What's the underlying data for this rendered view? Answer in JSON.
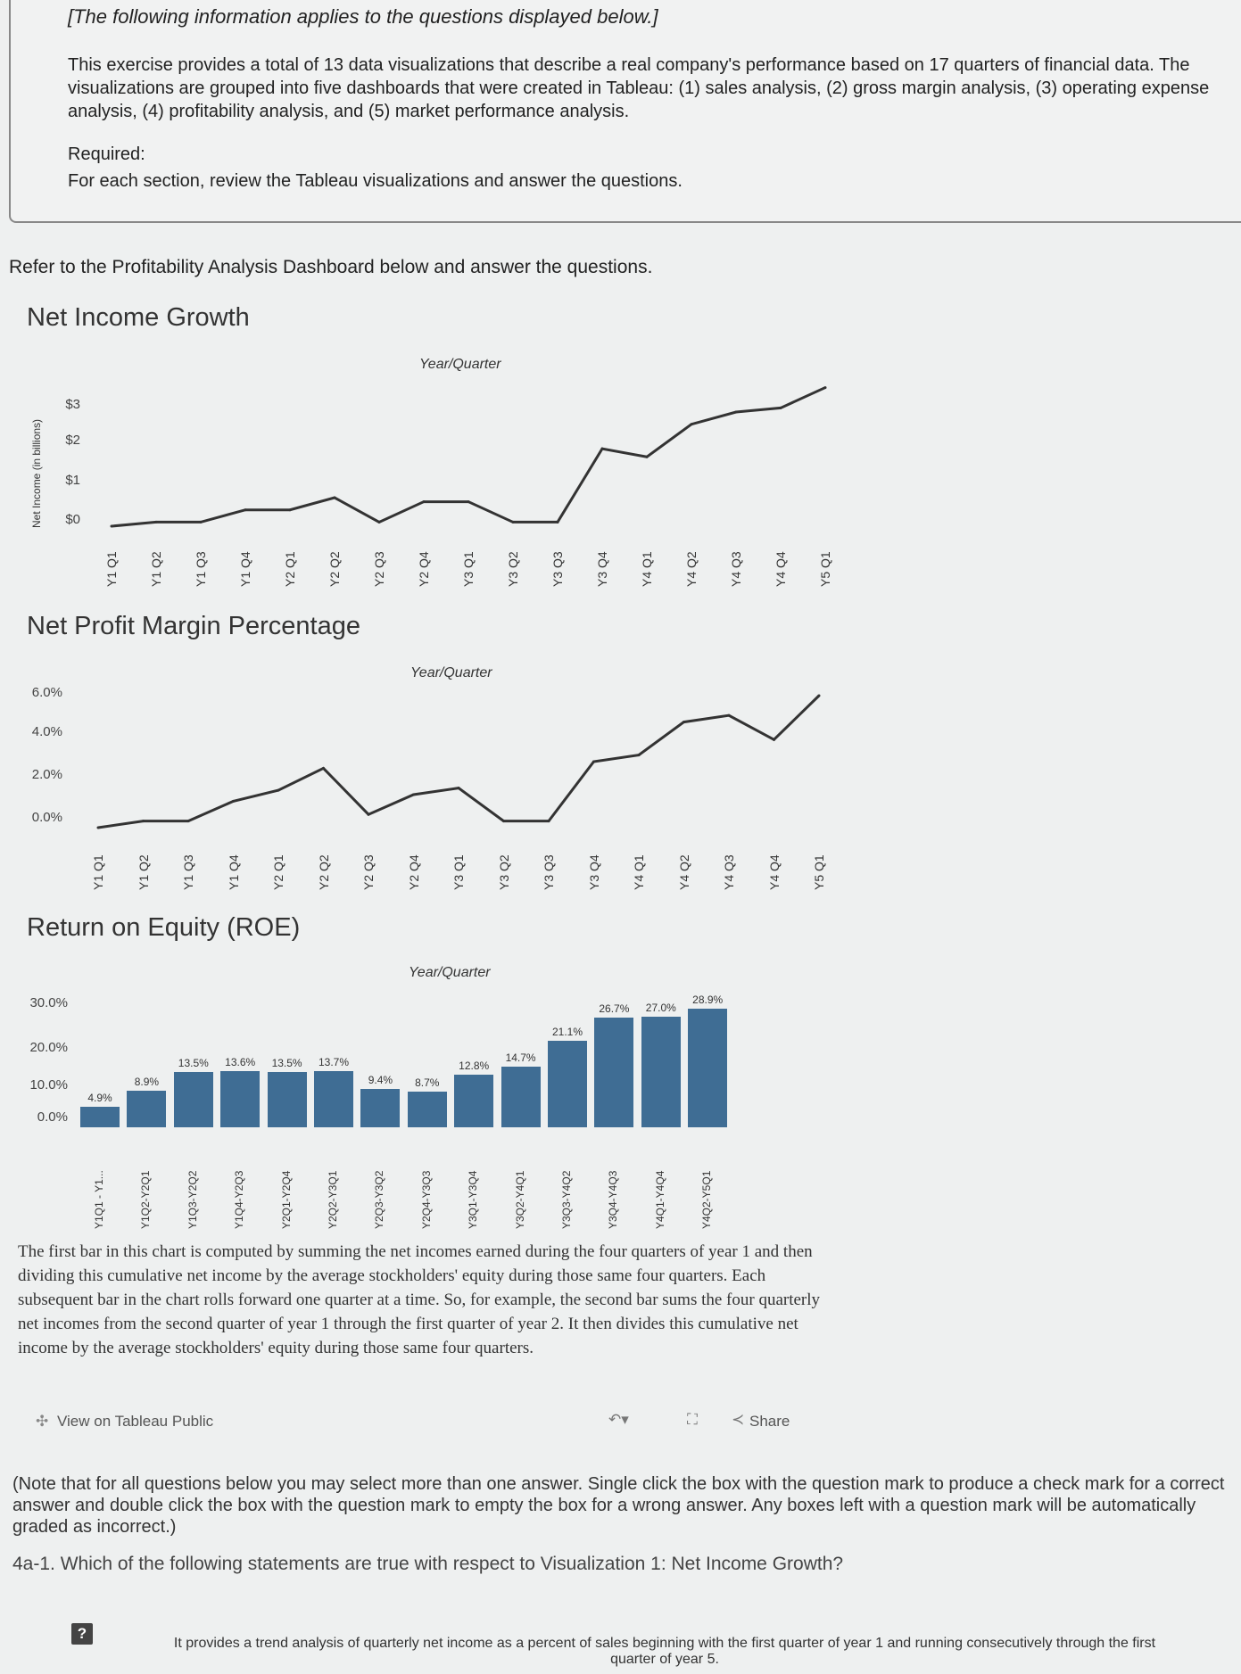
{
  "info": {
    "heading": "[The following information applies to the questions displayed below.]",
    "body": "This exercise provides a total of 13 data visualizations that describe a real company's performance based on 17 quarters of financial data. The visualizations are grouped into five dashboards that were created in Tableau: (1) sales analysis, (2) gross margin analysis, (3) operating expense analysis, (4) profitability analysis, and (5) market performance analysis.",
    "required_label": "Required:",
    "required_text": "For each section, review the Tableau visualizations and answer the questions."
  },
  "refer_text": "Refer to the Profitability Analysis Dashboard below and answer the questions.",
  "quarters": [
    "Y1 Q1",
    "Y1 Q2",
    "Y1 Q3",
    "Y1 Q4",
    "Y2 Q1",
    "Y2 Q2",
    "Y2 Q3",
    "Y2 Q4",
    "Y3 Q1",
    "Y3 Q2",
    "Y3 Q3",
    "Y3 Q4",
    "Y4 Q1",
    "Y4 Q2",
    "Y4 Q3",
    "Y4 Q4",
    "Y5 Q1"
  ],
  "chart_data": [
    {
      "type": "line",
      "title": "Net Income Growth",
      "xlabel": "Year/Quarter",
      "ylabel": "Net Income (in billions)",
      "y_ticks": [
        "$3",
        "$2",
        "$1",
        "$0"
      ],
      "ylim": [
        0,
        3.5
      ],
      "x": [
        "Y1 Q1",
        "Y1 Q2",
        "Y1 Q3",
        "Y1 Q4",
        "Y2 Q1",
        "Y2 Q2",
        "Y2 Q3",
        "Y2 Q4",
        "Y3 Q1",
        "Y3 Q2",
        "Y3 Q3",
        "Y3 Q4",
        "Y4 Q1",
        "Y4 Q2",
        "Y4 Q3",
        "Y4 Q4",
        "Y5 Q1"
      ],
      "values": [
        0.0,
        0.1,
        0.1,
        0.4,
        0.4,
        0.7,
        0.1,
        0.6,
        0.6,
        0.1,
        0.1,
        1.9,
        1.7,
        2.5,
        2.8,
        2.9,
        3.4
      ],
      "grid": false
    },
    {
      "type": "line",
      "title": "Net Profit Margin Percentage",
      "xlabel": "Year/Quarter",
      "ylabel": "",
      "y_ticks": [
        "6.0%",
        "4.0%",
        "2.0%",
        "0.0%"
      ],
      "ylim": [
        0,
        6
      ],
      "x": [
        "Y1 Q1",
        "Y1 Q2",
        "Y1 Q3",
        "Y1 Q4",
        "Y2 Q1",
        "Y2 Q2",
        "Y2 Q3",
        "Y2 Q4",
        "Y3 Q1",
        "Y3 Q2",
        "Y3 Q3",
        "Y3 Q4",
        "Y4 Q1",
        "Y4 Q2",
        "Y4 Q3",
        "Y4 Q4",
        "Y5 Q1"
      ],
      "values": [
        0.0,
        0.3,
        0.3,
        1.2,
        1.7,
        2.7,
        0.6,
        1.5,
        1.8,
        0.3,
        0.3,
        3.0,
        3.3,
        4.8,
        5.1,
        4.0,
        6.0
      ],
      "grid": false
    },
    {
      "type": "bar",
      "title": "Return on Equity (ROE)",
      "xlabel": "Year/Quarter",
      "ylabel": "",
      "y_ticks": [
        "30.0%",
        "20.0%",
        "10.0%",
        "0.0%"
      ],
      "ylim": [
        0,
        30
      ],
      "categories": [
        "Y1Q1 - Y1...",
        "Y1Q2-Y2Q1",
        "Y1Q3-Y2Q2",
        "Y1Q4-Y2Q3",
        "Y2Q1-Y2Q4",
        "Y2Q2-Y3Q1",
        "Y2Q3-Y3Q2",
        "Y2Q4-Y3Q3",
        "Y3Q1-Y3Q4",
        "Y3Q2-Y4Q1",
        "Y3Q3-Y4Q2",
        "Y3Q4-Y4Q3",
        "Y4Q1-Y4Q4",
        "Y4Q2-Y5Q1"
      ],
      "values": [
        4.9,
        8.9,
        13.5,
        13.6,
        13.5,
        13.7,
        9.4,
        8.7,
        12.8,
        14.7,
        21.1,
        26.7,
        27.0,
        28.9
      ],
      "labels": [
        "4.9%",
        "8.9%",
        "13.5%",
        "13.6%",
        "13.5%",
        "13.7%",
        "9.4%",
        "8.7%",
        "12.8%",
        "14.7%",
        "21.1%",
        "26.7%",
        "27.0%",
        "28.9%"
      ],
      "grid": false
    }
  ],
  "roe_description": "The first bar in this chart is computed by summing the net incomes earned during the four quarters of year 1 and then dividing this cumulative net income by the average stockholders' equity during those same four quarters. Each subsequent bar in the chart rolls forward one quarter at a time. So, for example, the second bar sums the four quarterly net incomes from the second quarter of year 1 through the first quarter of year 2. It then divides this cumulative net income by the average stockholders' equity during those same four quarters.",
  "tableau": {
    "view_link": "View on Tableau Public",
    "share_label": "Share",
    "view_icon": "tableau-logo-icon",
    "share_icon": "share-icon",
    "undo_icon": "undo-icon",
    "fullscreen_icon": "fullscreen-icon"
  },
  "note": "(Note that for all questions below you may select more than one answer. Single click the box with the question mark to produce a check mark for a correct answer and double click the box with the question mark to empty the box for a wrong answer. Any boxes left with a question mark will be automatically graded as incorrect.)",
  "question": "4a-1. Which of the following statements are true with respect to Visualization 1: Net Income Growth?",
  "answer_option": {
    "box": "?",
    "text": "It provides a trend analysis of quarterly net income as a percent of sales beginning with the first quarter of year 1 and running consecutively through the first quarter of year 5."
  },
  "colors": {
    "line": "#333333",
    "bar": "#3f6d94",
    "background": "#eef0f0"
  }
}
